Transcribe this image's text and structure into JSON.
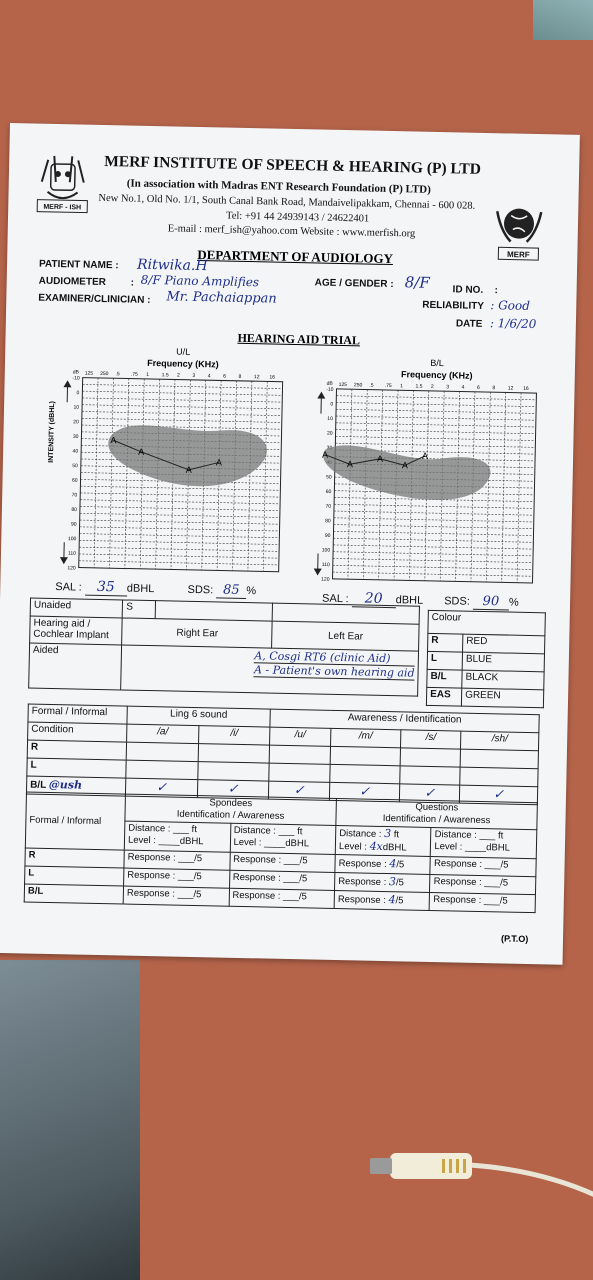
{
  "header": {
    "institute": "MERF INSTITUTE OF SPEECH & HEARING (P) LTD",
    "association": "(In association with Madras ENT Research Foundation (P) LTD)",
    "address": "New No.1, Old No. 1/1, South Canal Bank Road, Mandaivelipakkam, Chennai - 600 028.",
    "tel": "Tel: +91 44 24939143 / 24622401",
    "email": "E-mail : merf_ish@yahoo.com  Website : www.merfish.org",
    "logo_left_text": "MERF - ISH",
    "logo_right_text": "MERF"
  },
  "department": "DEPARTMENT OF AUDIOLOGY",
  "patient": {
    "name_label": "PATIENT NAME :",
    "name_value": "Ritwika.H",
    "audiometer_label": "AUDIOMETER",
    "audiometer_value": "8/F Piano Amplifies",
    "examiner_label": "EXAMINER/CLINICIAN :",
    "examiner_value": "Mr. Pachaiappan",
    "age_label": "AGE / GENDER :",
    "age_value": "8/F",
    "id_label": "ID NO.",
    "id_value": ":",
    "reliability_label": "RELIABILITY",
    "reliability_value": ": Good",
    "date_label": "DATE",
    "date_value": ": 1/6/20"
  },
  "trial_title": "HEARING AID TRIAL",
  "audiograms": [
    {
      "side": "U/L",
      "freq_label": "Frequency (KHz)",
      "x_ticks": [
        "125",
        "250",
        ".5",
        ".75",
        "1",
        "1.5",
        "2",
        "3",
        "4",
        "6",
        "8",
        "12",
        "16"
      ],
      "y_ticks": [
        "-10",
        "0",
        "10",
        "20",
        "30",
        "40",
        "50",
        "60",
        "70",
        "80",
        "90",
        "100",
        "110",
        "120"
      ],
      "y_label": "INTENSITY (dBHL)",
      "db_label": "dB"
    },
    {
      "side": "B/L",
      "freq_label": "Frequency (KHz)",
      "x_ticks": [
        "125",
        "250",
        ".5",
        ".75",
        "1",
        "1.5",
        "2",
        "3",
        "4",
        "6",
        "8",
        "12",
        "16"
      ],
      "y_ticks": [
        "-10",
        "0",
        "10",
        "20",
        "30",
        "40",
        "50",
        "60",
        "70",
        "80",
        "90",
        "100",
        "110",
        "120"
      ],
      "db_label": "dB"
    }
  ],
  "sal_sds": {
    "sal_label": "SAL :",
    "sal1": "35",
    "unit": "dBHL",
    "sds_label": "SDS:",
    "sds1": "85",
    "pct": "%",
    "sal2": "20",
    "sds2": "90"
  },
  "aid_table": {
    "unaided": "Unaided",
    "s": "S",
    "hearing_aid": "Hearing aid / Cochlear Implant",
    "right_ear": "Right Ear",
    "left_ear": "Left Ear",
    "aided": "Aided",
    "aided_note1": "A, Cosgi RT6 (clinic Aid)",
    "aided_note2": "A - Patient's own hearing aid"
  },
  "colour_table": {
    "title": "Colour",
    "rows": [
      {
        "k": "R",
        "v": "RED"
      },
      {
        "k": "L",
        "v": "BLUE"
      },
      {
        "k": "B/L",
        "v": "BLACK"
      },
      {
        "k": "EAS",
        "v": "GREEN"
      }
    ]
  },
  "ling_table": {
    "formal": "Formal / Informal",
    "ling": "Ling 6 sound",
    "awareness": "Awareness / Identification",
    "condition": "Condition",
    "sounds": [
      "/a/",
      "/i/",
      "/u/",
      "/m/",
      "/s/",
      "/sh/"
    ],
    "rows": [
      "R",
      "L",
      "B/L"
    ],
    "bl_note": "@ush",
    "bl_marks": [
      "✓",
      "✓",
      "✓",
      "✓",
      "✓",
      "✓"
    ]
  },
  "spondee_table": {
    "formal": "Formal / Informal",
    "spondees": "Spondees",
    "spondees_sub": "Identification / Awareness",
    "questions": "Questions",
    "questions_sub": "Identification / Awareness",
    "distance": "Distance : ___ ft",
    "level": "Level : ____dBHL",
    "response": "Response : ___/5",
    "q_distance": "Distance :",
    "q_distance_val": "3",
    "ft": "ft",
    "q_level": "Level :",
    "q_level_val": "4x",
    "dbhl": "dBHL",
    "q_response": "Response :",
    "q_resp_vals": [
      "4",
      "3",
      "4"
    ],
    "slash5": "/5",
    "rows": [
      "R",
      "L",
      "B/L"
    ]
  },
  "pto": "(P.T.O)"
}
